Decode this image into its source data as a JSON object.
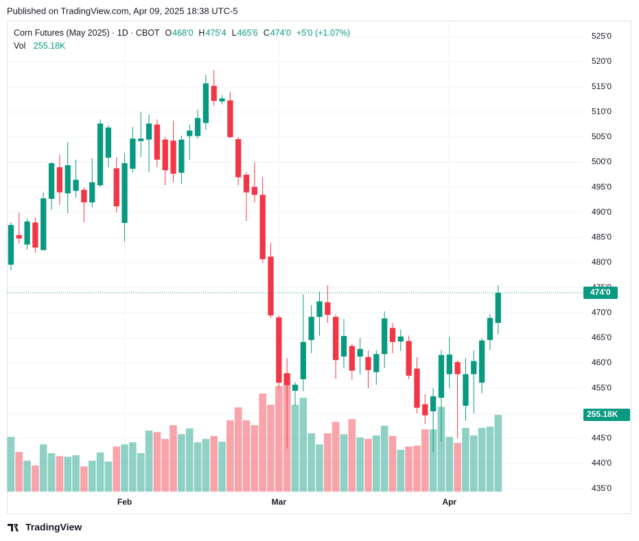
{
  "publish_note": "Published on TradingView.com, Apr 09, 2025 18:38 UTC-5",
  "brand": "TradingView",
  "chart_data": {
    "type": "candlestick",
    "title": "Corn Futures (May 2025) · 1D · CBOT",
    "legend": {
      "o_key": "O",
      "o": "468'0",
      "h_key": "H",
      "h": "475'4",
      "l_key": "L",
      "l": "465'6",
      "c_key": "C",
      "c": "474'0",
      "change": "+5'0 (+1.07%)",
      "vol_key": "Vol"
    },
    "up_color": "#089981",
    "down_color": "#f23645",
    "grid": true,
    "categories": [
      null,
      null,
      null,
      null,
      null,
      null,
      null,
      null,
      null,
      null,
      null,
      null,
      null,
      null,
      "Feb",
      null,
      null,
      null,
      null,
      null,
      null,
      null,
      null,
      null,
      null,
      null,
      null,
      null,
      null,
      null,
      null,
      null,
      null,
      "Mar",
      null,
      null,
      null,
      null,
      null,
      null,
      null,
      null,
      null,
      null,
      null,
      null,
      null,
      null,
      null,
      null,
      null,
      null,
      null,
      null,
      "Apr",
      null,
      null,
      null,
      null,
      null,
      null
    ],
    "open": [
      479.6,
      485.5,
      483.6,
      488,
      482.5,
      492.7,
      499,
      493.8,
      494.3,
      494.5,
      492,
      495.4,
      500.9,
      498.8,
      487.9,
      498.7,
      504.2,
      504.5,
      507.5,
      504.5,
      504.3,
      497.9,
      505.2,
      505.2,
      507.8,
      515.2,
      512.1,
      512.3,
      504.6,
      497.5,
      495.1,
      493.5,
      481.2,
      469.1,
      458,
      454.5,
      456.8,
      464.6,
      469.2,
      472.1,
      469.2,
      461.3,
      463.4,
      461.3,
      461.2,
      458.2,
      461.8,
      467,
      464.3,
      464.4,
      458.9,
      451.8,
      450.4,
      453.1,
      457.8,
      460.2,
      451.5,
      457.8,
      456.1,
      464.6,
      468
    ],
    "high": [
      488,
      490,
      488.8,
      489,
      494,
      500,
      501.5,
      504,
      500.5,
      495,
      500.8,
      508.5,
      507.4,
      501,
      501.8,
      507,
      510,
      509.5,
      508.5,
      505,
      508.3,
      505.3,
      507.5,
      510.5,
      517.4,
      518.3,
      513.4,
      514,
      505,
      498,
      500,
      497,
      484,
      469.5,
      461,
      456.2,
      473.7,
      471.5,
      474.2,
      475.5,
      469.7,
      468.8,
      463.8,
      465,
      462.5,
      462.6,
      470.3,
      468,
      466.7,
      465.5,
      461.2,
      453.8,
      455,
      462.6,
      465.2,
      460.5,
      461,
      462.5,
      465,
      469.8,
      475.5
    ],
    "low": [
      478.5,
      483.8,
      482.6,
      482,
      482.5,
      490.5,
      491.5,
      489.8,
      493,
      488,
      491,
      495,
      499,
      490,
      484.2,
      498,
      501,
      498,
      499,
      495.4,
      496,
      495.7,
      500.5,
      504.7,
      506.5,
      511.2,
      511.5,
      504.8,
      495.4,
      488.3,
      492,
      480,
      469,
      455,
      443,
      451.5,
      454.4,
      462,
      465.5,
      468,
      456.9,
      459,
      456.7,
      457.7,
      455,
      455.7,
      459,
      462,
      462.4,
      456.8,
      450,
      447.9,
      442.2,
      444.4,
      455,
      445,
      448.5,
      450,
      454,
      462.6,
      465.75
    ],
    "close": [
      487.5,
      484.8,
      488.2,
      483,
      492.8,
      499.8,
      494,
      499.4,
      496.5,
      492,
      496,
      507.7,
      506.9,
      491.2,
      499.8,
      504.7,
      504.7,
      507.7,
      500.5,
      498.4,
      497.7,
      504.5,
      506.3,
      508.8,
      515.7,
      512.2,
      512.7,
      505,
      497,
      494,
      493.5,
      480.7,
      469.5,
      456.1,
      455.6,
      455.7,
      464.2,
      469.2,
      472.3,
      469.6,
      460.6,
      465.4,
      458.5,
      462.8,
      458.6,
      461.8,
      468.9,
      464.2,
      465.3,
      457.5,
      451.1,
      449.6,
      453.4,
      461.6,
      461.7,
      457.8,
      457.8,
      460.4,
      464.5,
      469,
      474
    ],
    "volume": [
      182000,
      132000,
      103000,
      87000,
      157000,
      128000,
      118000,
      116000,
      121000,
      84000,
      103000,
      130000,
      100000,
      150000,
      157000,
      164000,
      128000,
      203000,
      198000,
      175000,
      221000,
      191000,
      210000,
      164000,
      175000,
      185000,
      166000,
      237000,
      280000,
      237000,
      221000,
      326000,
      289000,
      351000,
      392000,
      289000,
      312000,
      194000,
      157000,
      194000,
      232000,
      191000,
      241000,
      180000,
      175000,
      187000,
      219000,
      185000,
      139000,
      150000,
      153000,
      207000,
      207000,
      282000,
      182000,
      162000,
      212000,
      187000,
      212000,
      216000,
      255180
    ],
    "volume_label": "255.18K",
    "last_price": {
      "value": 474,
      "label": "474'0"
    },
    "ylim": [
      434,
      528.2
    ],
    "yticks": [
      {
        "value": 435,
        "label": "435'0"
      },
      {
        "value": 440,
        "label": "440'0"
      },
      {
        "value": 445,
        "label": "445'0"
      },
      {
        "value": 450,
        "label": "450'0"
      },
      {
        "value": 455,
        "label": "455'0"
      },
      {
        "value": 460,
        "label": "460'0"
      },
      {
        "value": 465,
        "label": "465'0"
      },
      {
        "value": 470,
        "label": "470'0"
      },
      {
        "value": 475,
        "label": "475'0"
      },
      {
        "value": 480,
        "label": "480'0"
      },
      {
        "value": 485,
        "label": "485'0"
      },
      {
        "value": 490,
        "label": "490'0"
      },
      {
        "value": 495,
        "label": "495'0"
      },
      {
        "value": 500,
        "label": "500'0"
      },
      {
        "value": 505,
        "label": "505'0"
      },
      {
        "value": 510,
        "label": "510'0"
      },
      {
        "value": 515,
        "label": "515'0"
      },
      {
        "value": 520,
        "label": "520'0"
      },
      {
        "value": 525,
        "label": "525'0"
      }
    ]
  }
}
